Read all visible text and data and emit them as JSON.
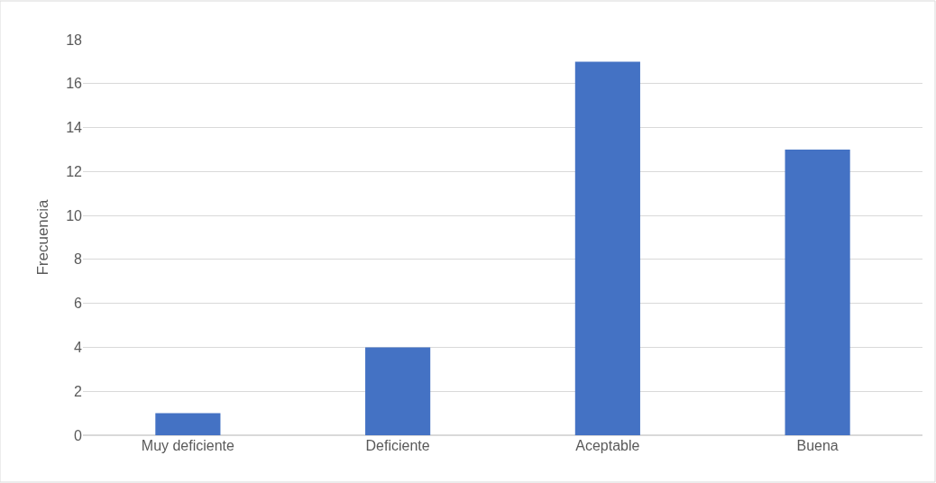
{
  "chart_data": {
    "type": "bar",
    "ylabel": "Frecuencia",
    "categories": [
      "Muy deficiente",
      "Deficiente",
      "Aceptable",
      "Buena"
    ],
    "values": [
      1,
      4,
      17,
      13
    ],
    "color": "#4472c4",
    "ylim": [
      0,
      18
    ],
    "yticks": [
      0,
      2,
      4,
      6,
      8,
      10,
      12,
      14,
      16,
      18
    ],
    "grid": "y",
    "legend": false
  }
}
